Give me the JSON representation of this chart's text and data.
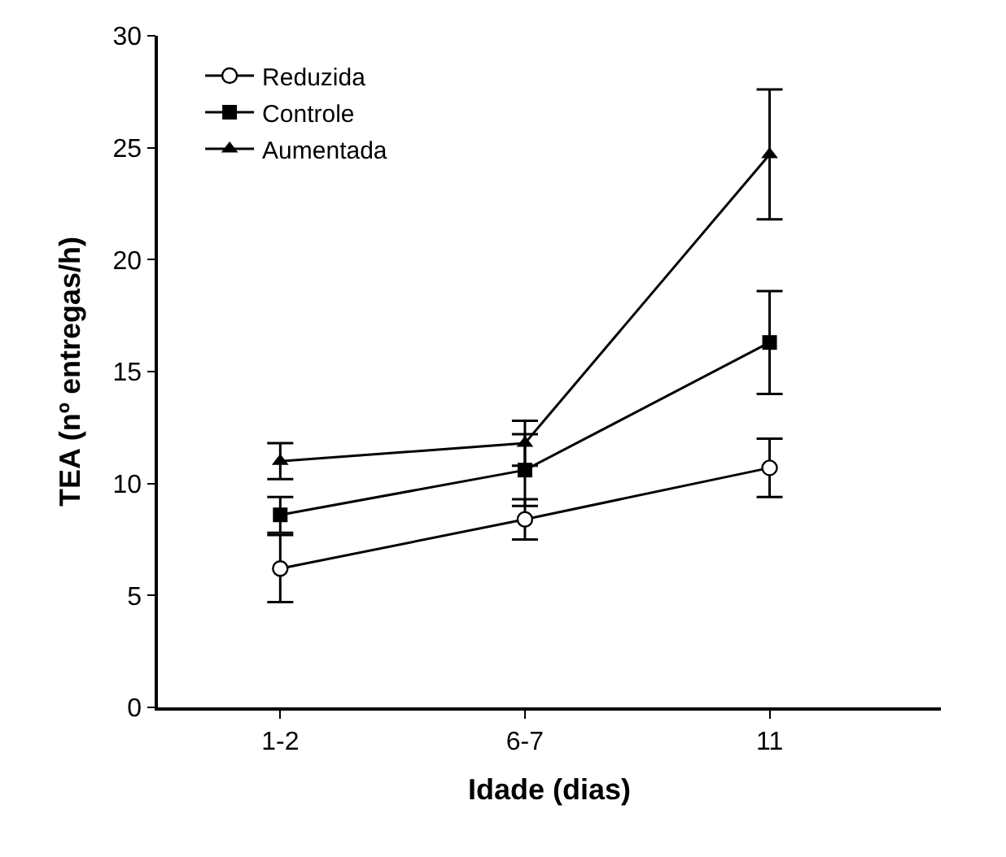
{
  "chart_data": {
    "type": "line",
    "xlabel": "Idade (dias)",
    "ylabel": "TEA (nº entregas/h)",
    "categories": [
      "1-2",
      "6-7",
      "11"
    ],
    "series": [
      {
        "name": "Reduzida",
        "color": "#000000",
        "marker": "circle",
        "values": [
          6.2,
          8.4,
          10.7
        ],
        "errors": [
          1.5,
          0.9,
          1.3
        ]
      },
      {
        "name": "Controle",
        "color": "#000000",
        "marker": "square",
        "values": [
          8.6,
          10.6,
          16.3
        ],
        "errors": [
          0.8,
          1.6,
          2.3
        ]
      },
      {
        "name": "Aumentada",
        "color": "#000000",
        "marker": "triangle",
        "values": [
          11.0,
          11.8,
          24.7
        ],
        "errors": [
          0.8,
          1.0,
          2.9
        ]
      }
    ],
    "ylim": [
      0,
      30
    ],
    "yticks": [
      0,
      5,
      10,
      15,
      20,
      25,
      30
    ],
    "legend": "top left",
    "line_style": "solid"
  }
}
